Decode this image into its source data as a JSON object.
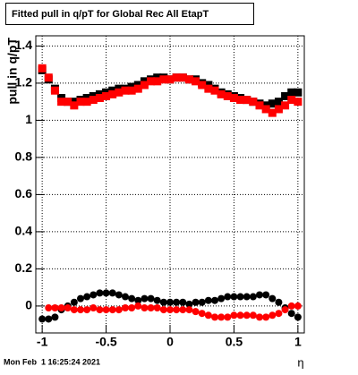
{
  "chart_data": {
    "type": "scatter",
    "title": "Fitted pull in q/pT for Global Rec All EtapT",
    "y_label": "pull in q/pT",
    "x_label": "η",
    "x": [
      -1.0,
      -0.95,
      -0.9,
      -0.85,
      -0.8,
      -0.75,
      -0.7,
      -0.65,
      -0.6,
      -0.55,
      -0.5,
      -0.45,
      -0.4,
      -0.35,
      -0.3,
      -0.25,
      -0.2,
      -0.15,
      -0.1,
      -0.05,
      0,
      0.05,
      0.1,
      0.15,
      0.2,
      0.25,
      0.3,
      0.35,
      0.4,
      0.45,
      0.5,
      0.55,
      0.6,
      0.65,
      0.7,
      0.75,
      0.8,
      0.85,
      0.9,
      0.95,
      1.0
    ],
    "series": [
      {
        "color": "#000000",
        "marker": "square",
        "values": [
          1.27,
          1.22,
          1.17,
          1.12,
          1.1,
          1.1,
          1.11,
          1.12,
          1.13,
          1.14,
          1.15,
          1.16,
          1.17,
          1.17,
          1.18,
          1.19,
          1.21,
          1.22,
          1.23,
          1.23,
          1.22,
          1.23,
          1.23,
          1.22,
          1.22,
          1.2,
          1.19,
          1.17,
          1.15,
          1.14,
          1.13,
          1.12,
          1.11,
          1.1,
          1.09,
          1.08,
          1.09,
          1.1,
          1.13,
          1.15,
          1.15
        ]
      },
      {
        "color": "#ff0000",
        "marker": "square",
        "values": [
          1.28,
          1.23,
          1.16,
          1.1,
          1.1,
          1.08,
          1.1,
          1.1,
          1.11,
          1.12,
          1.13,
          1.14,
          1.15,
          1.16,
          1.16,
          1.17,
          1.19,
          1.21,
          1.21,
          1.22,
          1.22,
          1.23,
          1.23,
          1.22,
          1.21,
          1.19,
          1.17,
          1.16,
          1.14,
          1.13,
          1.12,
          1.11,
          1.11,
          1.1,
          1.08,
          1.06,
          1.04,
          1.06,
          1.08,
          1.11,
          1.1
        ]
      },
      {
        "color": "#000000",
        "marker": "circle",
        "values": [
          -0.07,
          -0.07,
          -0.06,
          -0.02,
          0.0,
          0.02,
          0.04,
          0.05,
          0.06,
          0.07,
          0.07,
          0.07,
          0.06,
          0.05,
          0.04,
          0.03,
          0.04,
          0.04,
          0.03,
          0.02,
          0.02,
          0.02,
          0.02,
          0.01,
          0.02,
          0.02,
          0.03,
          0.03,
          0.04,
          0.05,
          0.05,
          0.05,
          0.05,
          0.05,
          0.06,
          0.06,
          0.04,
          0.02,
          -0.01,
          -0.04,
          -0.06
        ]
      },
      {
        "color": "#ff0000",
        "marker": "circle",
        "values": [
          null,
          -0.01,
          -0.01,
          -0.01,
          -0.01,
          -0.02,
          -0.02,
          -0.02,
          -0.01,
          -0.02,
          -0.02,
          -0.02,
          -0.02,
          -0.01,
          -0.01,
          0.0,
          -0.01,
          -0.01,
          -0.01,
          -0.02,
          -0.02,
          -0.02,
          -0.02,
          -0.02,
          -0.03,
          -0.04,
          -0.05,
          -0.06,
          -0.06,
          -0.06,
          -0.05,
          -0.05,
          -0.05,
          -0.05,
          -0.06,
          -0.06,
          -0.05,
          -0.04,
          -0.02,
          0.0,
          0.0
        ]
      }
    ],
    "xlim": [
      -1.05,
      1.05
    ],
    "xticks": [
      -1,
      -0.5,
      0,
      0.5,
      1
    ],
    "ylim": [
      -0.145,
      1.455
    ],
    "yticks": [
      0,
      0.2,
      0.4,
      0.6,
      0.8,
      1,
      1.2,
      1.4
    ],
    "grid": true
  },
  "footer": "Mon Feb  1 16:25:24 2021"
}
